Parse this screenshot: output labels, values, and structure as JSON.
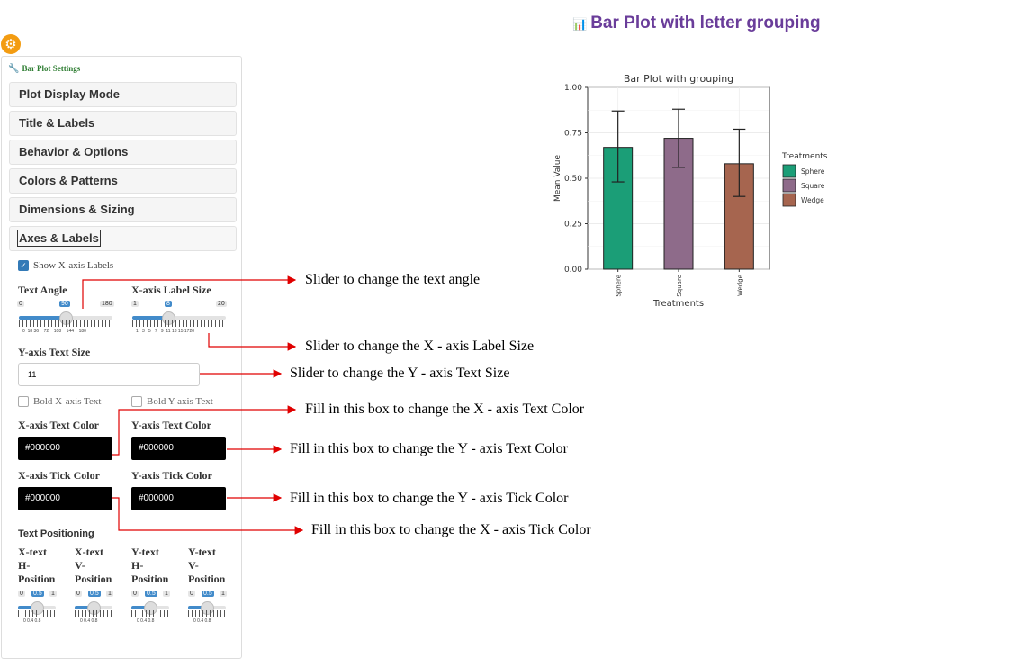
{
  "header": {
    "title": "Bar Plot with letter grouping",
    "icon": "bar-chart-icon"
  },
  "sidebar": {
    "title": "Bar Plot Settings",
    "sections": [
      "Plot Display Mode",
      "Title & Labels",
      "Behavior & Options",
      "Colors & Patterns",
      "Dimensions & Sizing",
      "Axes & Labels"
    ],
    "show_x_labels": "Show X-axis Labels",
    "text_angle": {
      "label": "Text Angle",
      "min": "0",
      "max": "180",
      "value": "90",
      "ticks": [
        "0",
        "18",
        "36",
        "72",
        "108",
        "144",
        "180"
      ]
    },
    "x_label_size": {
      "label": "X-axis Label Size",
      "min": "1",
      "max": "20",
      "value": "8",
      "ticks": [
        "1",
        "3",
        "5",
        "7",
        "9",
        "11",
        "13",
        "15",
        "17",
        "20"
      ]
    },
    "y_text_size": {
      "label": "Y-axis Text Size",
      "value": "11"
    },
    "bold_x": "Bold X-axis Text",
    "bold_y": "Bold Y-axis Text",
    "x_text_color": {
      "label": "X-axis Text Color",
      "value": "#000000"
    },
    "y_text_color": {
      "label": "Y-axis Text Color",
      "value": "#000000"
    },
    "x_tick_color": {
      "label": "X-axis Tick Color",
      "value": "#000000"
    },
    "y_tick_color": {
      "label": "Y-axis Tick Color",
      "value": "#000000"
    },
    "text_positioning": "Text Positioning",
    "positions": [
      {
        "l1": "X-text",
        "l2": "H-",
        "l3": "Position"
      },
      {
        "l1": "X-text",
        "l2": "V-",
        "l3": "Position"
      },
      {
        "l1": "Y-text",
        "l2": "H-",
        "l3": "Position"
      },
      {
        "l1": "Y-text",
        "l2": "V-",
        "l3": "Position"
      }
    ],
    "pos_slider": {
      "min": "0",
      "max": "1",
      "value": "0.5",
      "ticks": [
        "0",
        "0.4",
        "0.8"
      ]
    }
  },
  "annotations": [
    "Slider to change the text angle",
    "Slider to change the X - axis Label Size",
    "Slider to change the Y - axis Text Size",
    "Fill in this box to change the X - axis Text Color",
    "Fill in this box to change the Y - axis Text Color",
    "Fill in this box to change the Y - axis Tick Color",
    "Fill in this box to change the X - axis Tick Color"
  ],
  "colors": {
    "accent": "#6a3d9a",
    "arrow": "#e00000",
    "sphere": "#1b9e77",
    "square": "#8e6b8a",
    "wedge": "#a6654f"
  },
  "chart_data": {
    "type": "bar",
    "title": "Bar Plot with grouping",
    "xlabel": "Treatments",
    "ylabel": "Mean Value",
    "categories": [
      "Sphere",
      "Square",
      "Wedge"
    ],
    "values": [
      0.67,
      0.72,
      0.58
    ],
    "error_low": [
      0.48,
      0.56,
      0.4
    ],
    "error_high": [
      0.87,
      0.88,
      0.77
    ],
    "ylim": [
      0,
      1.0
    ],
    "yticks": [
      "0.00",
      "0.25",
      "0.50",
      "0.75",
      "1.00"
    ],
    "legend_title": "Treatments",
    "legend": [
      "Sphere",
      "Square",
      "Wedge"
    ],
    "legend_position": "right",
    "grid": true
  }
}
